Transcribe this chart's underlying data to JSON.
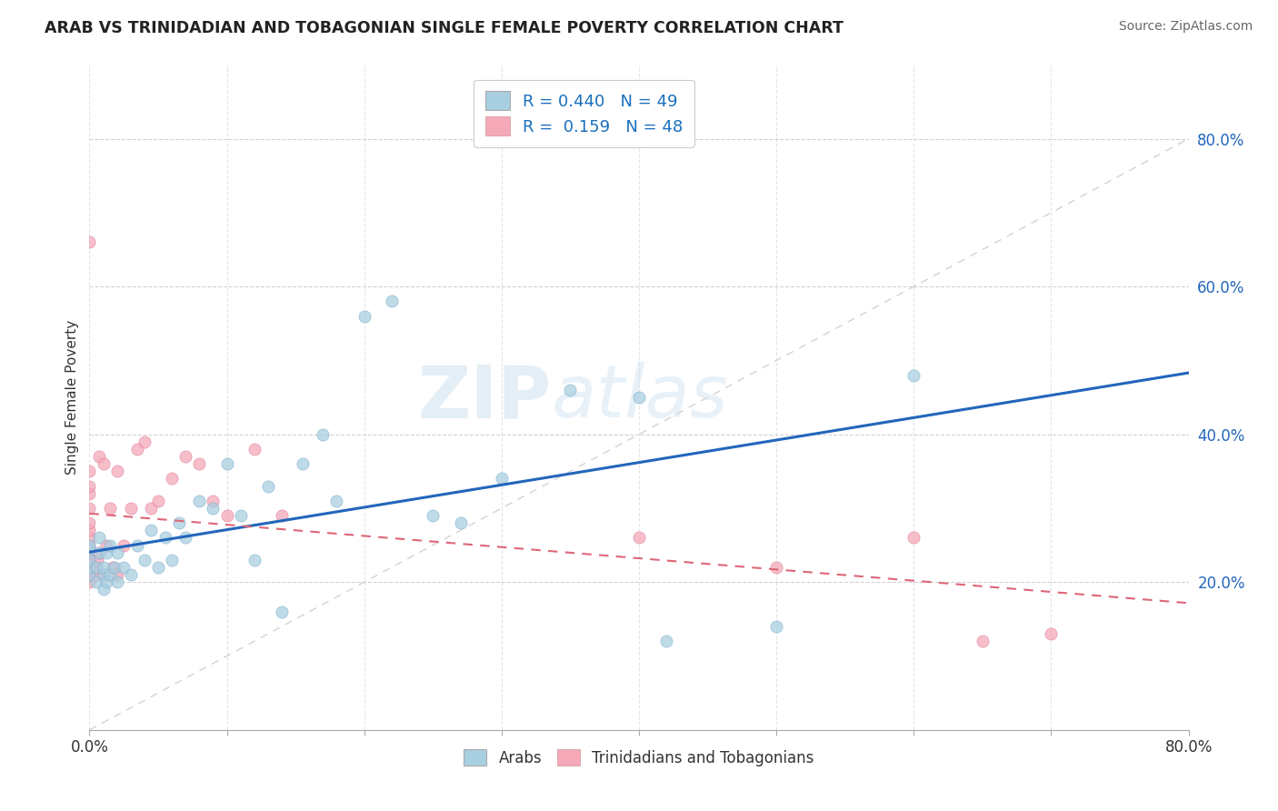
{
  "title": "ARAB VS TRINIDADIAN AND TOBAGONIAN SINGLE FEMALE POVERTY CORRELATION CHART",
  "source": "Source: ZipAtlas.com",
  "ylabel": "Single Female Poverty",
  "xlim": [
    0.0,
    0.8
  ],
  "ylim": [
    0.0,
    0.9
  ],
  "xticks": [
    0.0,
    0.1,
    0.2,
    0.3,
    0.4,
    0.5,
    0.6,
    0.7,
    0.8
  ],
  "xtick_labels_show": {
    "0.0": "0.0%",
    "0.80": "80.0%"
  },
  "yticks": [
    0.0,
    0.2,
    0.4,
    0.6,
    0.8
  ],
  "ytick_labels_right": [
    "",
    "20.0%",
    "40.0%",
    "60.0%",
    "80.0%"
  ],
  "arab_R": 0.44,
  "arab_N": 49,
  "tnt_R": 0.159,
  "tnt_N": 48,
  "arab_color": "#a8cfe0",
  "tnt_color": "#f4a8b8",
  "arab_line_color": "#2266bb",
  "tnt_line_color": "#dd6677",
  "legend_label_arab": "Arabs",
  "legend_label_tnt": "Trinidadians and Tobagonians",
  "watermark_zip": "ZIP",
  "watermark_atlas": "atlas",
  "background_color": "#ffffff",
  "grid_color": "#cccccc",
  "arab_x": [
    0.0,
    0.0,
    0.0,
    0.0,
    0.0,
    0.005,
    0.005,
    0.007,
    0.007,
    0.01,
    0.01,
    0.01,
    0.012,
    0.012,
    0.015,
    0.015,
    0.018,
    0.02,
    0.02,
    0.025,
    0.03,
    0.035,
    0.04,
    0.045,
    0.05,
    0.055,
    0.06,
    0.065,
    0.07,
    0.08,
    0.09,
    0.1,
    0.11,
    0.12,
    0.13,
    0.14,
    0.155,
    0.17,
    0.18,
    0.2,
    0.22,
    0.25,
    0.27,
    0.3,
    0.35,
    0.4,
    0.42,
    0.5,
    0.6
  ],
  "arab_y": [
    0.21,
    0.22,
    0.23,
    0.245,
    0.25,
    0.2,
    0.22,
    0.24,
    0.26,
    0.19,
    0.21,
    0.22,
    0.2,
    0.24,
    0.21,
    0.25,
    0.22,
    0.2,
    0.24,
    0.22,
    0.21,
    0.25,
    0.23,
    0.27,
    0.22,
    0.26,
    0.23,
    0.28,
    0.26,
    0.31,
    0.3,
    0.36,
    0.29,
    0.23,
    0.33,
    0.16,
    0.36,
    0.4,
    0.31,
    0.56,
    0.58,
    0.29,
    0.28,
    0.34,
    0.46,
    0.45,
    0.12,
    0.14,
    0.48
  ],
  "tnt_x": [
    0.0,
    0.0,
    0.0,
    0.0,
    0.0,
    0.0,
    0.0,
    0.0,
    0.0,
    0.0,
    0.0,
    0.0,
    0.0,
    0.0,
    0.0,
    0.0,
    0.0,
    0.0,
    0.005,
    0.005,
    0.006,
    0.007,
    0.007,
    0.01,
    0.01,
    0.012,
    0.015,
    0.017,
    0.02,
    0.02,
    0.025,
    0.03,
    0.035,
    0.04,
    0.045,
    0.05,
    0.06,
    0.07,
    0.08,
    0.09,
    0.1,
    0.12,
    0.14,
    0.4,
    0.5,
    0.6,
    0.65,
    0.7
  ],
  "tnt_y": [
    0.2,
    0.21,
    0.215,
    0.22,
    0.225,
    0.23,
    0.235,
    0.24,
    0.245,
    0.25,
    0.26,
    0.27,
    0.28,
    0.3,
    0.32,
    0.33,
    0.35,
    0.66,
    0.21,
    0.22,
    0.23,
    0.24,
    0.37,
    0.21,
    0.36,
    0.25,
    0.3,
    0.22,
    0.21,
    0.35,
    0.25,
    0.3,
    0.38,
    0.39,
    0.3,
    0.31,
    0.34,
    0.37,
    0.36,
    0.31,
    0.29,
    0.38,
    0.29,
    0.26,
    0.22,
    0.26,
    0.12,
    0.13
  ]
}
